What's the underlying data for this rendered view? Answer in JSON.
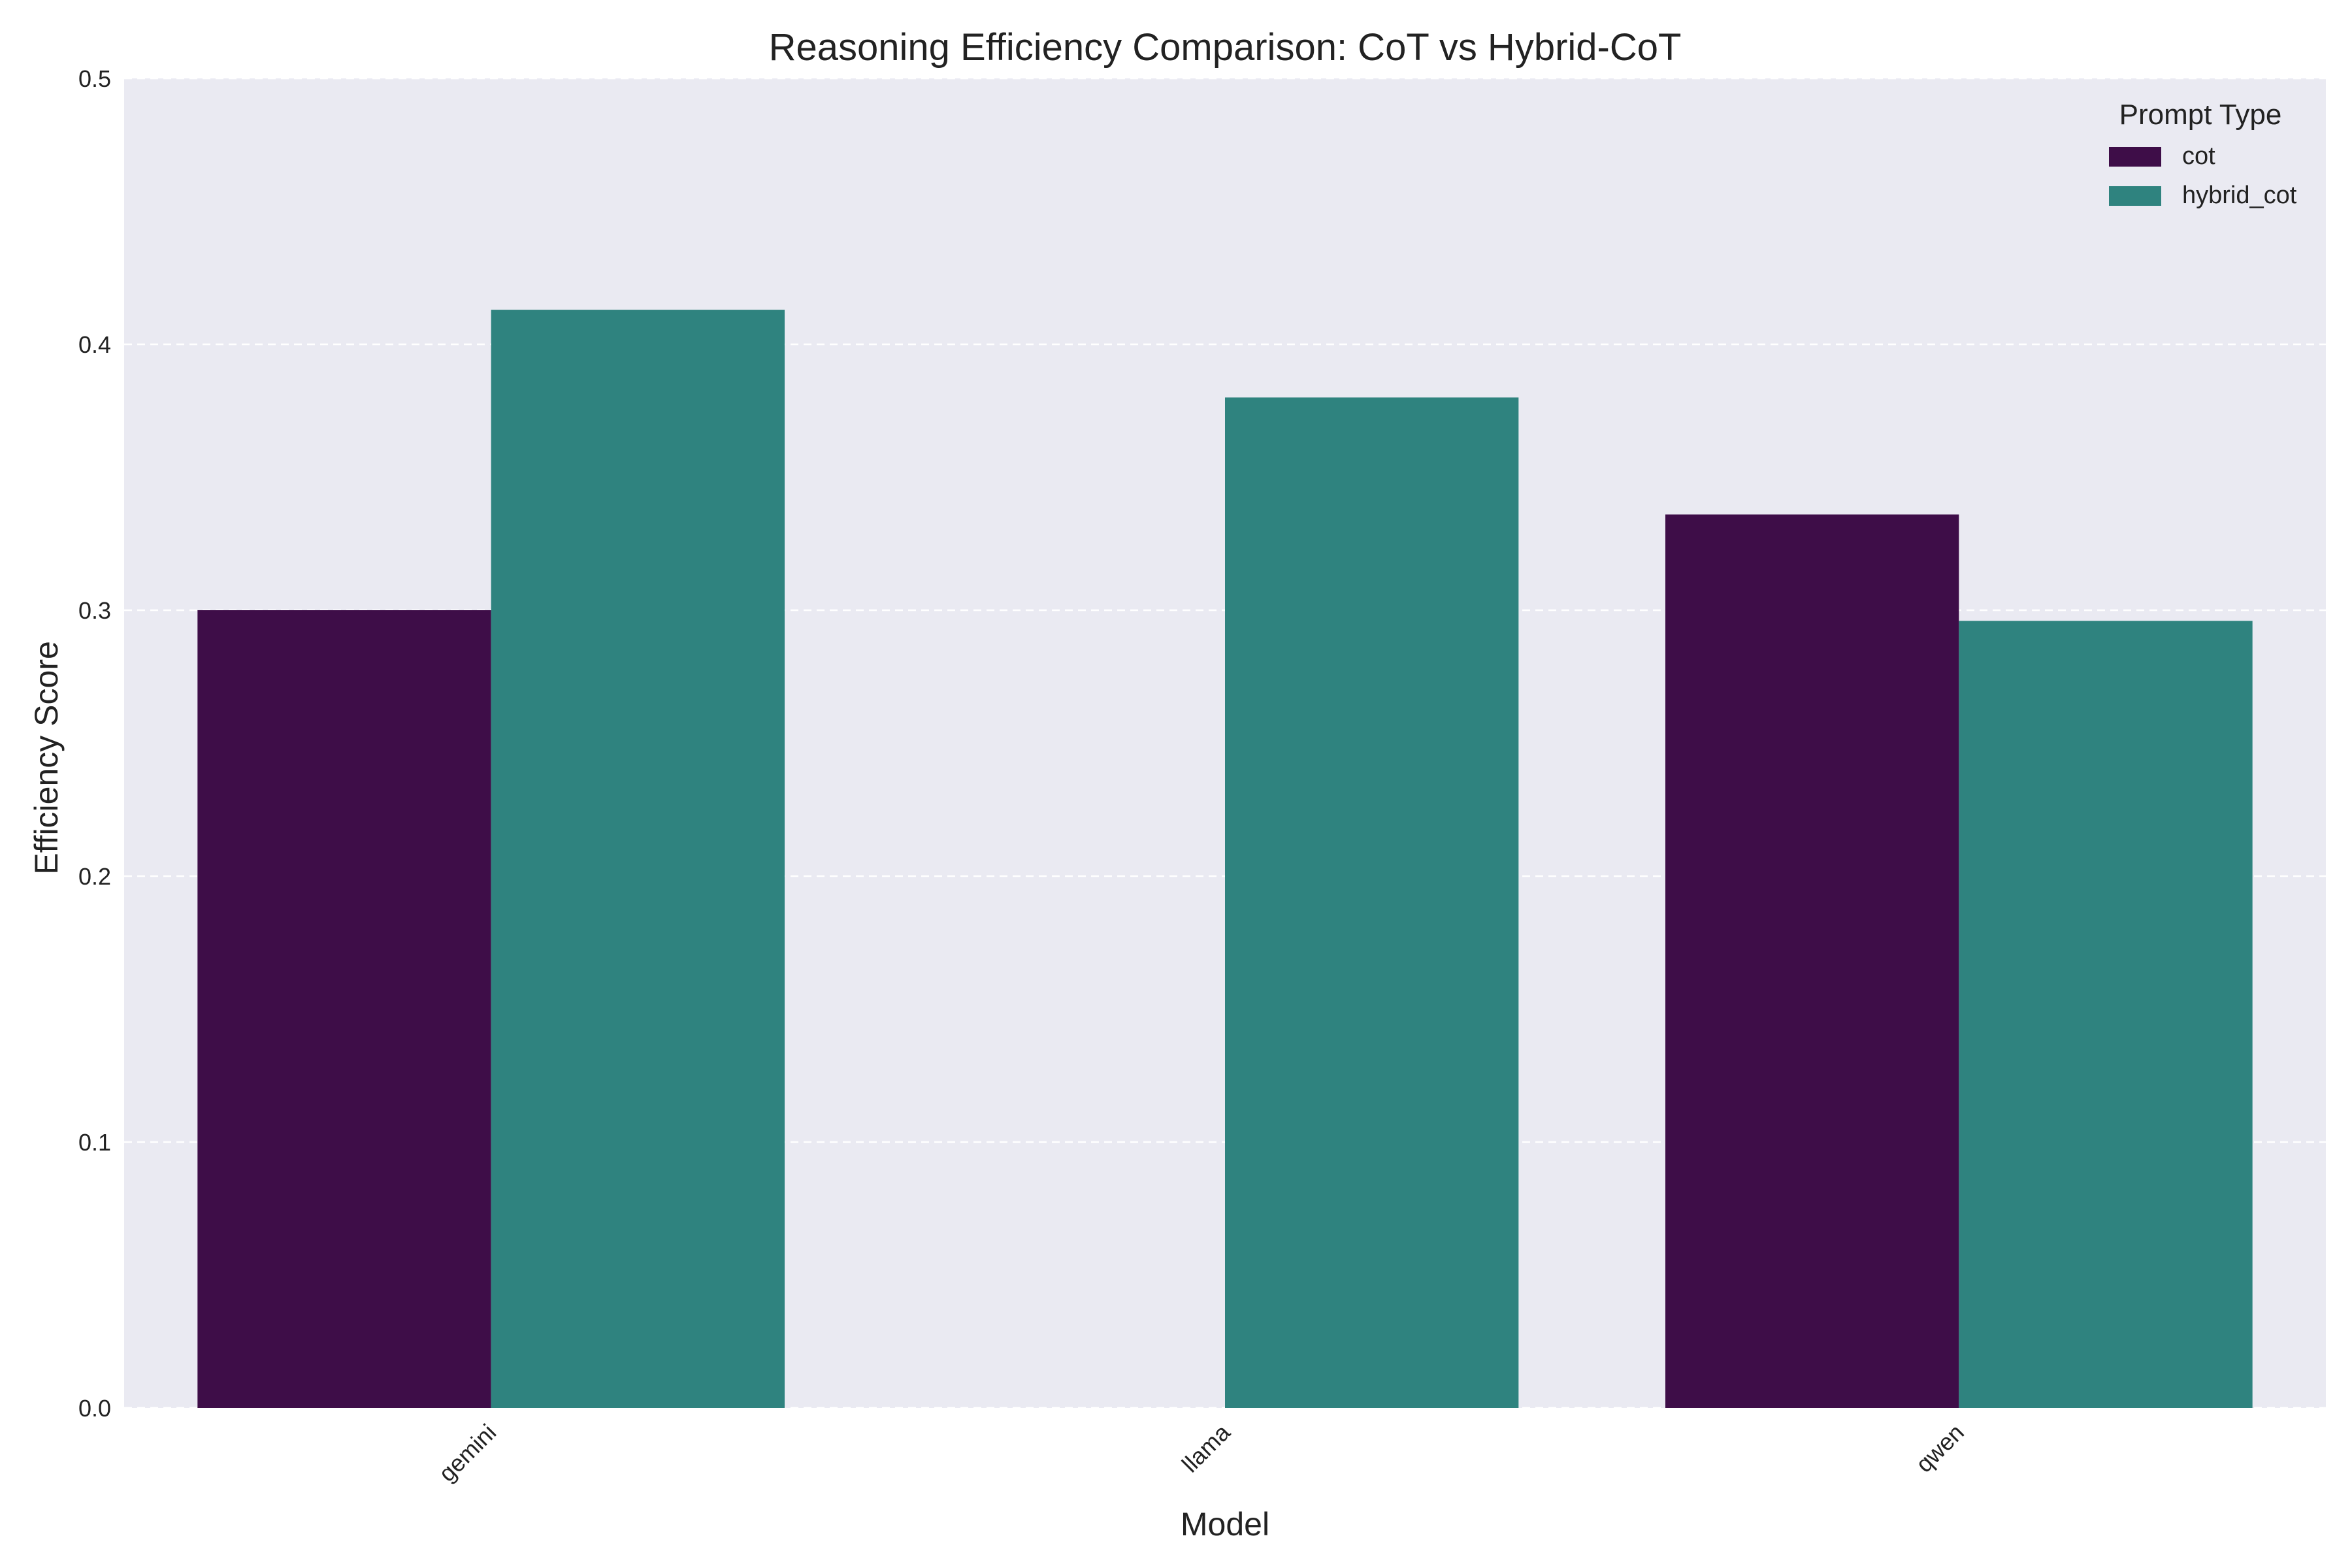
{
  "chart_data": {
    "type": "bar",
    "title": "Reasoning Efficiency Comparison: CoT vs Hybrid-CoT",
    "xlabel": "Model",
    "ylabel": "Efficiency Score",
    "ylim": [
      0,
      0.5
    ],
    "yticks": [
      "0.0",
      "0.1",
      "0.2",
      "0.3",
      "0.4",
      "0.5"
    ],
    "categories": [
      "gemini",
      "llama",
      "qwen"
    ],
    "grid": "horizontal, dashed",
    "legend": {
      "title": "Prompt Type",
      "placement": "top-right"
    },
    "series": [
      {
        "name": "cot",
        "color": "#3e0d48",
        "values": [
          0.3,
          null,
          0.336
        ]
      },
      {
        "name": "hybrid_cot",
        "color": "#2f837f",
        "values": [
          0.413,
          0.38,
          0.296
        ]
      }
    ],
    "colors": {
      "plot_background": "#eaeaf2",
      "grid": "#ffffff",
      "text": "#222222"
    }
  }
}
